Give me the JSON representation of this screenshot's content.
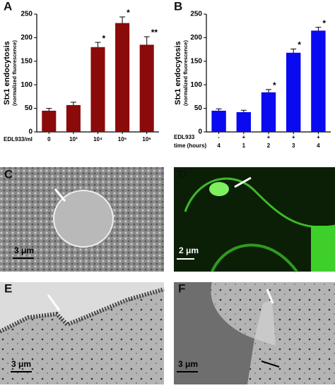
{
  "chart_data": [
    {
      "type": "bar",
      "panel_label": "A",
      "y_label": "Stx1 endocytosis",
      "y_sublabel": "(normalized fluorescence)",
      "row_label": "EDL933/ml",
      "categories": [
        "0",
        "10²",
        "10⁴",
        "10⁵",
        "10⁶"
      ],
      "values": [
        45,
        57,
        180,
        231,
        185
      ],
      "errors": [
        5,
        6,
        10,
        13,
        17
      ],
      "significance": [
        null,
        null,
        "*",
        "*",
        "**"
      ],
      "color": "#8b0a0a",
      "ylim": [
        0,
        250
      ],
      "yticks": [
        0,
        50,
        100,
        150,
        200,
        250
      ]
    },
    {
      "type": "bar",
      "panel_label": "B",
      "y_label": "Stx1 endocytosis",
      "y_sublabel": "(normalized fluorescence)",
      "row_label": "EDL933",
      "row_values": [
        "-",
        "+",
        "+",
        "+",
        "+"
      ],
      "category_label": "time (hours)",
      "categories": [
        "4",
        "1",
        "2",
        "3",
        "4"
      ],
      "values": [
        45,
        42,
        84,
        168,
        215
      ],
      "errors": [
        4,
        4,
        6,
        8,
        7
      ],
      "significance": [
        null,
        null,
        "*",
        "*",
        "*"
      ],
      "color": "#0a0af0",
      "ylim": [
        0,
        250
      ],
      "yticks": [
        0,
        50,
        100,
        150,
        200,
        250
      ]
    }
  ],
  "panels": [
    {
      "label": "C",
      "scale_bar": "3 μm"
    },
    {
      "label": "D",
      "scale_bar": "2 μm"
    },
    {
      "label": "E",
      "scale_bar": "3 μm"
    },
    {
      "label": "F",
      "scale_bar": "3 μm"
    }
  ]
}
